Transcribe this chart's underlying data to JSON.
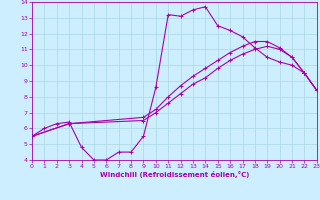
{
  "xlabel": "Windchill (Refroidissement éolien,°C)",
  "background_color": "#cceeff",
  "grid_color": "#aad8e0",
  "line_color": "#aa00aa",
  "xlim": [
    0,
    23
  ],
  "ylim": [
    4,
    14
  ],
  "xticks": [
    0,
    1,
    2,
    3,
    4,
    5,
    6,
    7,
    8,
    9,
    10,
    11,
    12,
    13,
    14,
    15,
    16,
    17,
    18,
    19,
    20,
    21,
    22,
    23
  ],
  "yticks": [
    4,
    5,
    6,
    7,
    8,
    9,
    10,
    11,
    12,
    13,
    14
  ],
  "curve1_x": [
    0,
    1,
    2,
    3,
    4,
    5,
    6,
    7,
    8,
    9,
    10,
    11,
    12,
    13,
    14,
    15,
    16,
    17,
    18,
    19,
    20,
    21,
    22,
    23
  ],
  "curve1_y": [
    5.5,
    6.0,
    6.3,
    6.4,
    4.8,
    4.0,
    4.0,
    4.5,
    4.5,
    5.5,
    8.6,
    13.2,
    13.1,
    13.5,
    13.7,
    12.5,
    12.2,
    11.8,
    11.1,
    10.5,
    10.2,
    10.0,
    9.5,
    8.4
  ],
  "curve2_x": [
    0,
    3,
    9,
    10,
    11,
    12,
    13,
    14,
    15,
    16,
    17,
    18,
    19,
    20,
    21,
    22,
    23
  ],
  "curve2_y": [
    5.5,
    6.3,
    6.7,
    7.2,
    8.0,
    8.7,
    9.3,
    9.8,
    10.3,
    10.8,
    11.2,
    11.5,
    11.5,
    11.1,
    10.5,
    9.5,
    8.4
  ],
  "curve3_x": [
    0,
    3,
    9,
    10,
    11,
    12,
    13,
    14,
    15,
    16,
    17,
    18,
    19,
    20,
    21,
    22,
    23
  ],
  "curve3_y": [
    5.5,
    6.3,
    6.5,
    7.0,
    7.6,
    8.2,
    8.8,
    9.2,
    9.8,
    10.3,
    10.7,
    11.0,
    11.2,
    11.0,
    10.5,
    9.5,
    8.4
  ]
}
